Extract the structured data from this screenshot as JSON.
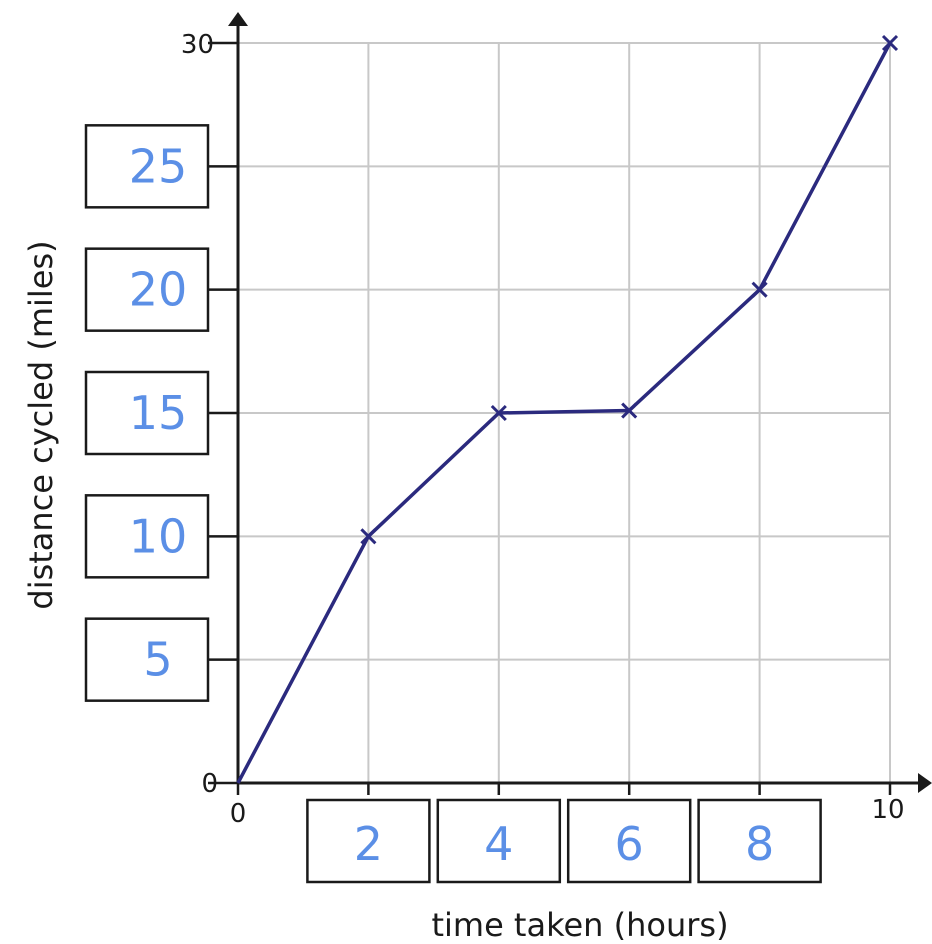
{
  "chart_data": {
    "type": "line",
    "title": "",
    "xlabel": "time taken (hours)",
    "ylabel": "distance cycled (miles)",
    "xlim": [
      0,
      10
    ],
    "ylim": [
      0,
      30
    ],
    "grid": true,
    "legend": "none",
    "x_tick_labels": {
      "printed": [
        "0",
        "10"
      ],
      "handwritten_in_boxes": [
        "2",
        "4",
        "6",
        "8"
      ]
    },
    "y_tick_labels": {
      "printed": [
        "0",
        "30"
      ],
      "handwritten_in_boxes": [
        "5",
        "10",
        "15",
        "20",
        "25"
      ]
    },
    "series": [
      {
        "x": [
          0,
          2,
          4,
          6,
          8,
          10
        ],
        "y": [
          0,
          10,
          15,
          15.1,
          20,
          30
        ]
      }
    ],
    "colors": {
      "line": "#2b2a7e",
      "grid": "#c8c8c8",
      "axis": "#1a1a1a",
      "handwriting": "#5b8fe6"
    }
  }
}
